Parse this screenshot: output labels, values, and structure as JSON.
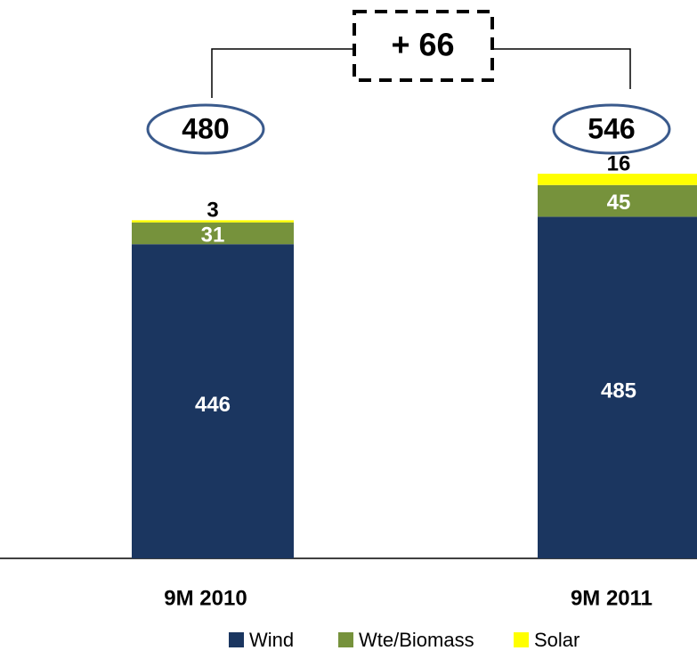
{
  "chart_data": {
    "type": "stacked_bar",
    "categories": [
      "9M 2010",
      "9M 2011"
    ],
    "series": [
      {
        "name": "Wind",
        "color": "#1b3660",
        "values": [
          446,
          485
        ]
      },
      {
        "name": "Wte/Biomass",
        "color": "#76923c",
        "values": [
          31,
          45
        ]
      },
      {
        "name": "Solar",
        "color": "#ffff00",
        "values": [
          3,
          16
        ]
      }
    ],
    "totals": [
      480,
      546
    ],
    "annotation": "+ 66"
  }
}
